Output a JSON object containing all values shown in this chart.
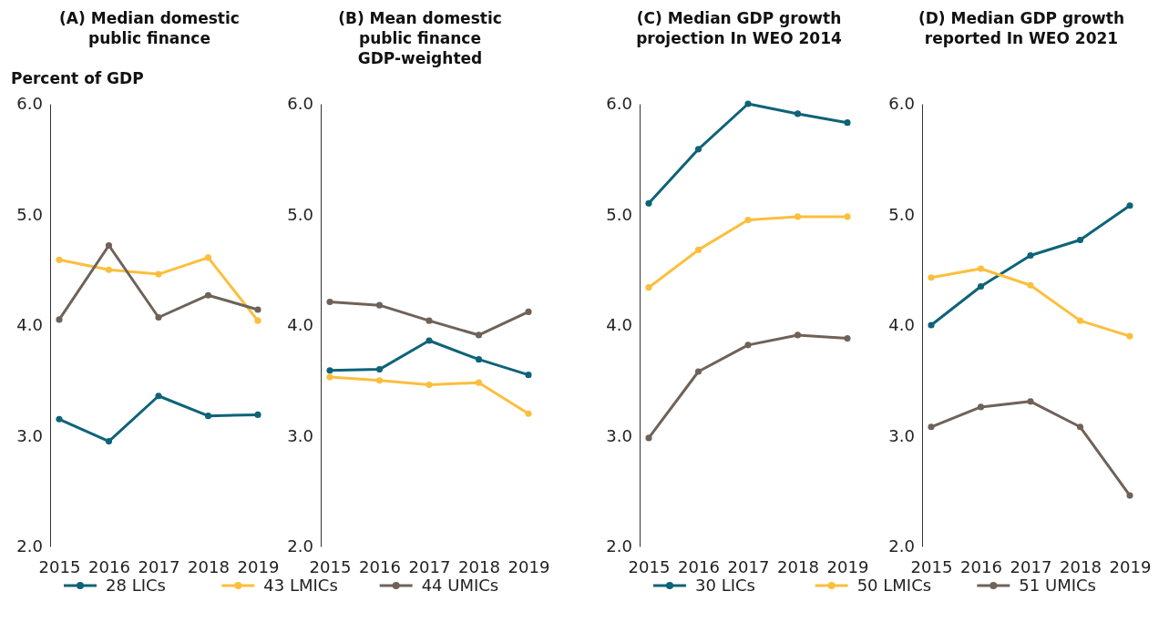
{
  "chart_data": [
    {
      "type": "line",
      "title": "(A) Median domestic public finance",
      "ylabel": "Percent of GDP",
      "categories": [
        "2015",
        "2016",
        "2017",
        "2018",
        "2019"
      ],
      "ylim": [
        2,
        6
      ],
      "yticks": [
        {
          "value": 2,
          "label": "2.0"
        },
        {
          "value": 3,
          "label": "3.0"
        },
        {
          "value": 4,
          "label": "4.0"
        },
        {
          "value": 5,
          "label": "5.0"
        },
        {
          "value": 6,
          "label": "6.0"
        }
      ],
      "grid": false,
      "marker": "circle",
      "legend": "bottom",
      "series": [
        {
          "name": "28 LICs",
          "color": "#0e6378",
          "values": [
            3.15,
            2.95,
            3.36,
            3.18,
            3.19
          ]
        },
        {
          "name": "43 LMICs",
          "color": "#fbbf3d",
          "values": [
            4.59,
            4.5,
            4.46,
            4.61,
            4.04
          ]
        },
        {
          "name": "44 UMICs",
          "color": "#6e6259",
          "values": [
            4.05,
            4.72,
            4.07,
            4.27,
            4.14
          ]
        }
      ]
    },
    {
      "type": "line",
      "title": "(B) Mean domestic public finance GDP-weighted",
      "categories": [
        "2015",
        "2016",
        "2017",
        "2018",
        "2019"
      ],
      "ylim": [
        2,
        6
      ],
      "yticks": [
        {
          "value": 2,
          "label": "2.0"
        },
        {
          "value": 3,
          "label": "3.0"
        },
        {
          "value": 4,
          "label": "4.0"
        },
        {
          "value": 5,
          "label": "5.0"
        },
        {
          "value": 6,
          "label": "6.0"
        }
      ],
      "grid": false,
      "marker": "circle",
      "series": [
        {
          "color": "#0e6378",
          "values": [
            3.59,
            3.6,
            3.86,
            3.69,
            3.55
          ]
        },
        {
          "color": "#fbbf3d",
          "values": [
            3.53,
            3.5,
            3.46,
            3.48,
            3.2
          ]
        },
        {
          "color": "#6e6259",
          "values": [
            4.21,
            4.18,
            4.04,
            3.91,
            4.12
          ]
        }
      ]
    },
    {
      "type": "line",
      "title": "(C) Median GDP growth projection In WEO 2014",
      "categories": [
        "2015",
        "2016",
        "2017",
        "2018",
        "2019"
      ],
      "ylim": [
        2,
        6
      ],
      "yticks": [
        {
          "value": 2,
          "label": "2.0"
        },
        {
          "value": 3,
          "label": "3.0"
        },
        {
          "value": 4,
          "label": "4.0"
        },
        {
          "value": 5,
          "label": "5.0"
        },
        {
          "value": 6,
          "label": "6.0"
        }
      ],
      "grid": false,
      "marker": "circle",
      "legend": "bottom",
      "series": [
        {
          "name": "30 LICs",
          "color": "#0e6378",
          "values": [
            5.1,
            5.59,
            6.0,
            5.91,
            5.83
          ]
        },
        {
          "name": "50 LMICs",
          "color": "#fbbf3d",
          "values": [
            4.34,
            4.68,
            4.95,
            4.98,
            4.98
          ]
        },
        {
          "name": "51 UMICs",
          "color": "#6e6259",
          "values": [
            2.98,
            3.58,
            3.82,
            3.91,
            3.88
          ]
        }
      ]
    },
    {
      "type": "line",
      "title": "(D) Median GDP growth reported In WEO 2021",
      "categories": [
        "2015",
        "2016",
        "2017",
        "2018",
        "2019"
      ],
      "ylim": [
        2,
        6
      ],
      "yticks": [
        {
          "value": 2,
          "label": "2.0"
        },
        {
          "value": 3,
          "label": "3.0"
        },
        {
          "value": 4,
          "label": "4.0"
        },
        {
          "value": 5,
          "label": "5.0"
        },
        {
          "value": 6,
          "label": "6.0"
        }
      ],
      "grid": false,
      "marker": "circle",
      "series": [
        {
          "color": "#0e6378",
          "values": [
            4.0,
            4.35,
            4.63,
            4.77,
            5.08
          ]
        },
        {
          "color": "#fbbf3d",
          "values": [
            4.43,
            4.51,
            4.36,
            4.04,
            3.9
          ]
        },
        {
          "color": "#6e6259",
          "values": [
            3.08,
            3.26,
            3.31,
            3.08,
            2.46
          ]
        }
      ]
    }
  ]
}
